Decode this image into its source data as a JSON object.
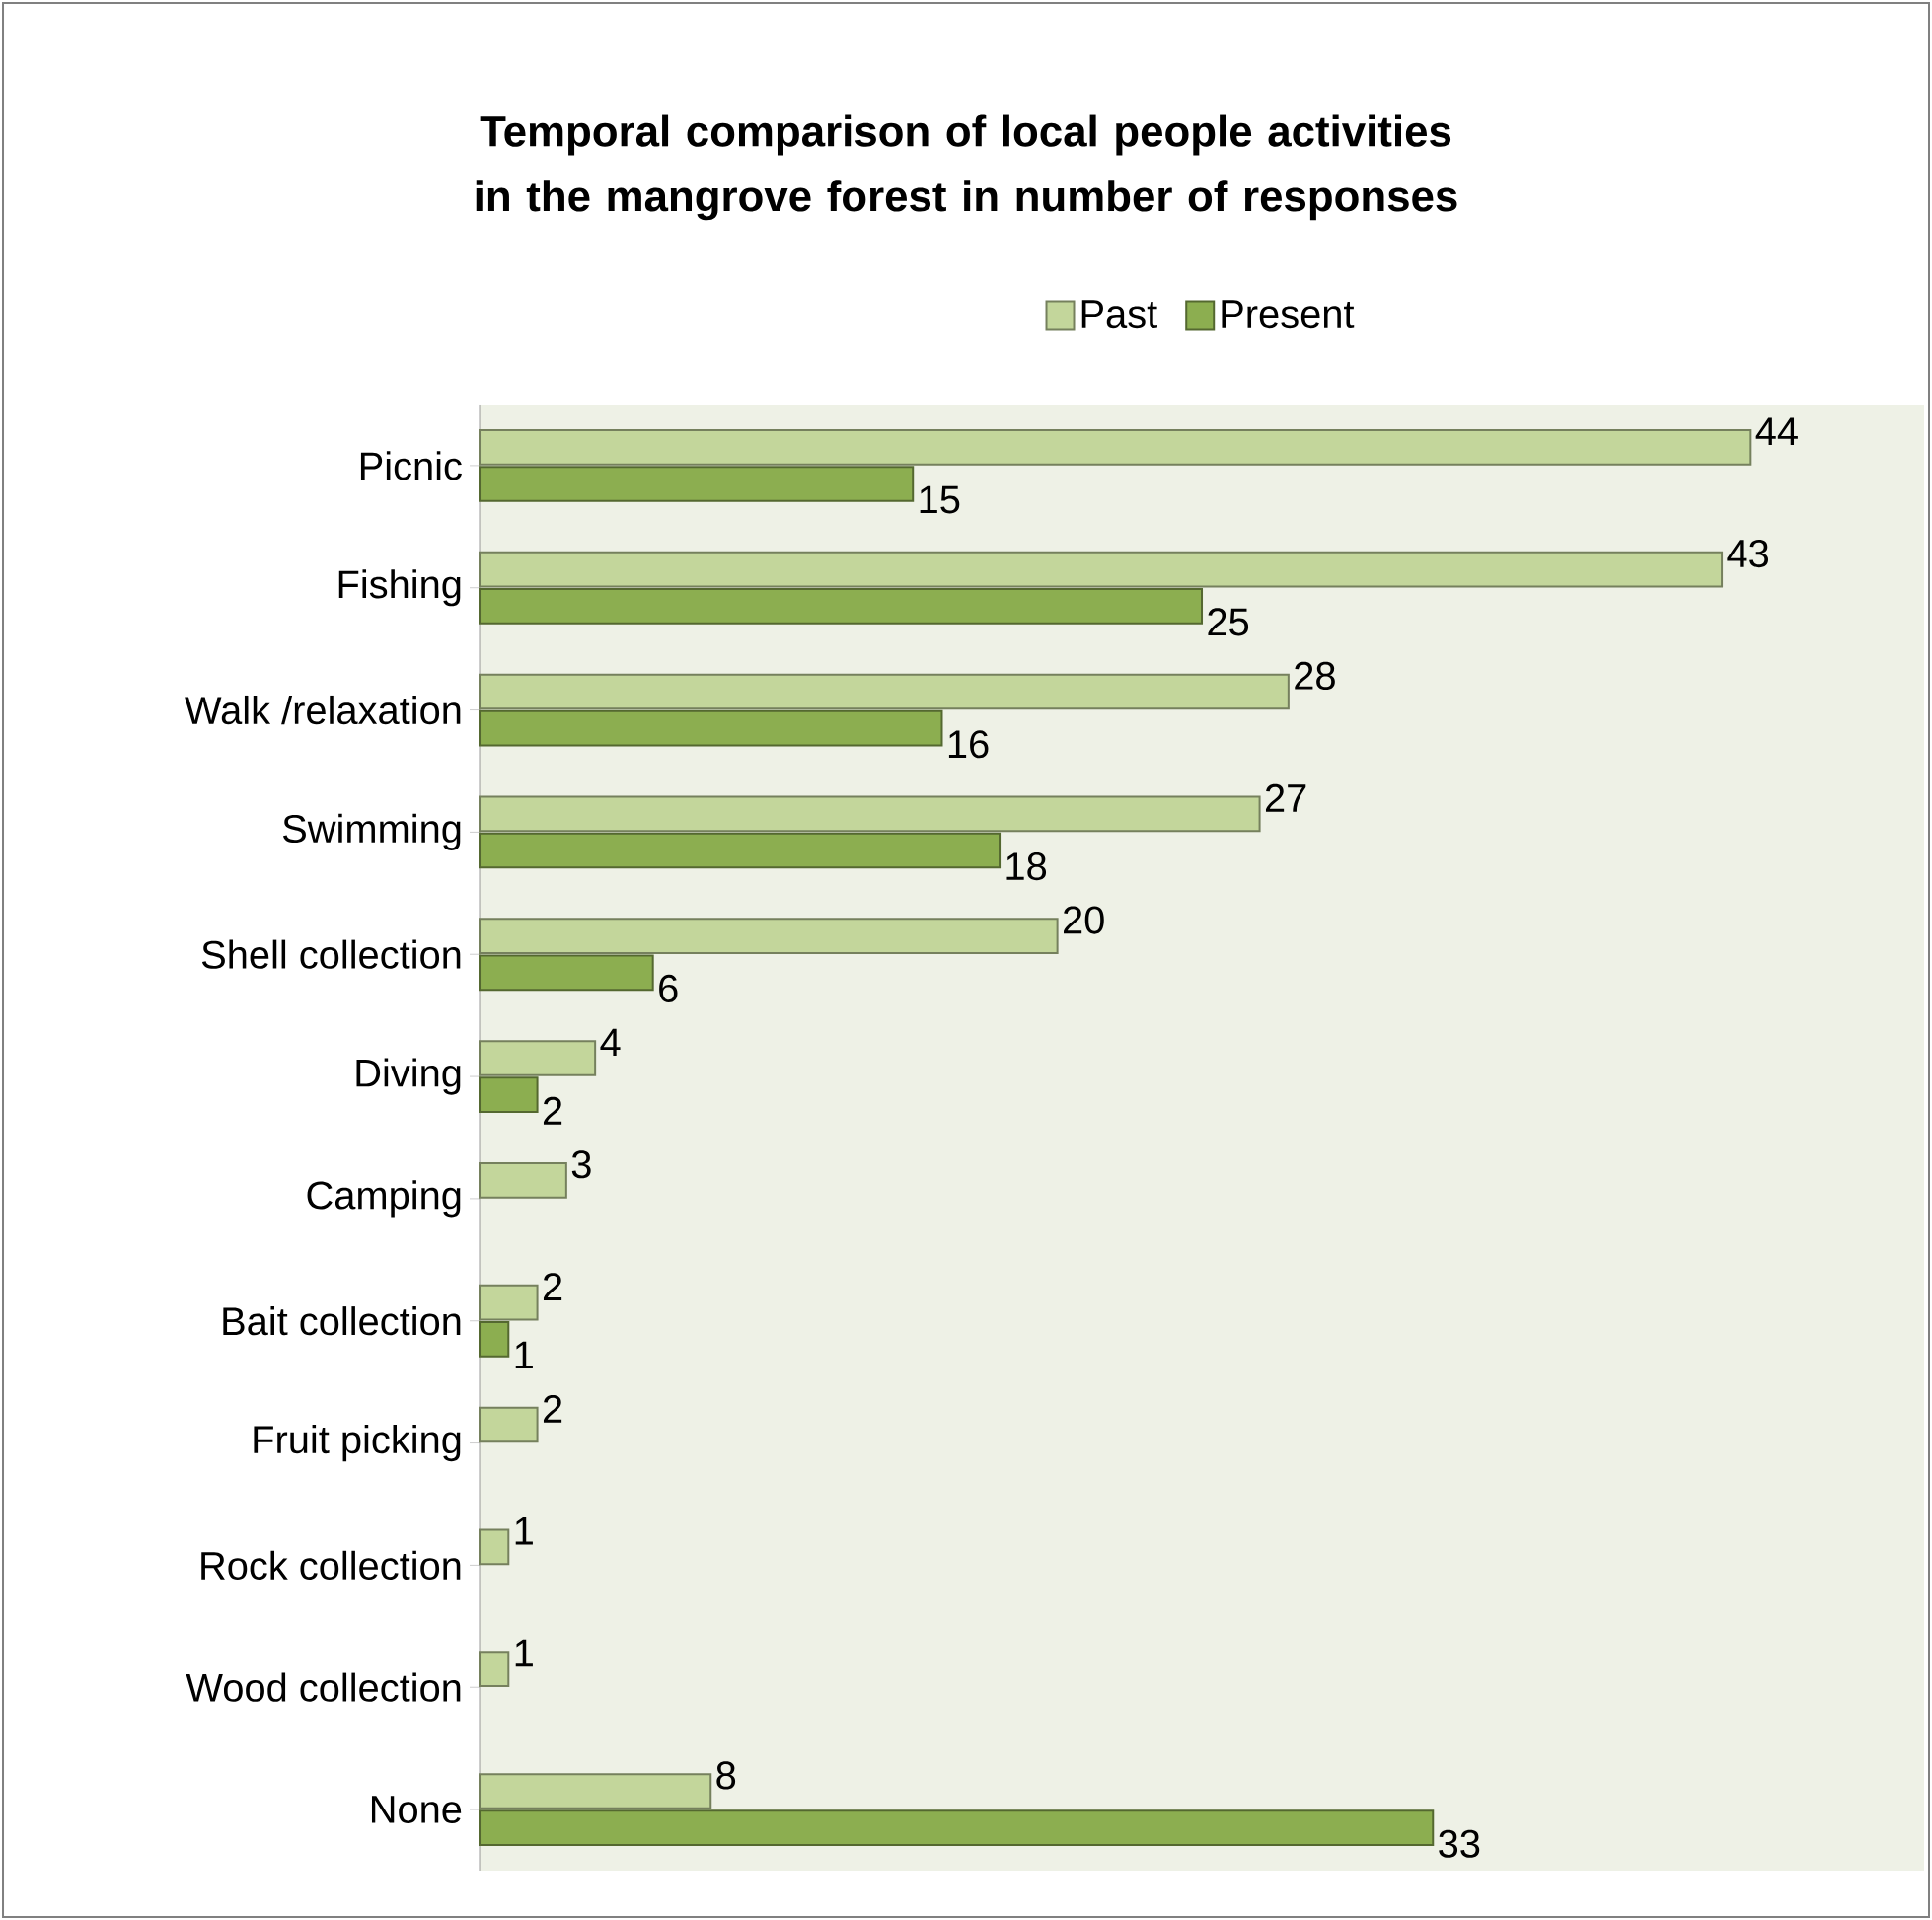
{
  "chart_data": {
    "type": "bar",
    "orientation": "horizontal",
    "title": "Temporal comparison of local people activities in the mangrove forest in number of responses",
    "categories": [
      "Picnic",
      "Fishing",
      "Walk /relaxation",
      "Swimming",
      "Shell collection",
      "Diving",
      "Camping",
      "Bait collection",
      "Fruit picking",
      "Rock collection",
      "Wood collection",
      "None"
    ],
    "series": [
      {
        "name": "Past",
        "color": "#c3d69b",
        "values": [
          44,
          43,
          28,
          27,
          20,
          4,
          3,
          2,
          2,
          1,
          1,
          8
        ]
      },
      {
        "name": "Present",
        "color": "#8cae50",
        "values": [
          15,
          25,
          16,
          18,
          6,
          2,
          null,
          1,
          null,
          null,
          null,
          33
        ]
      }
    ],
    "xlim": [
      0,
      50
    ],
    "data_labels": true,
    "legend": "top",
    "grid": false
  }
}
